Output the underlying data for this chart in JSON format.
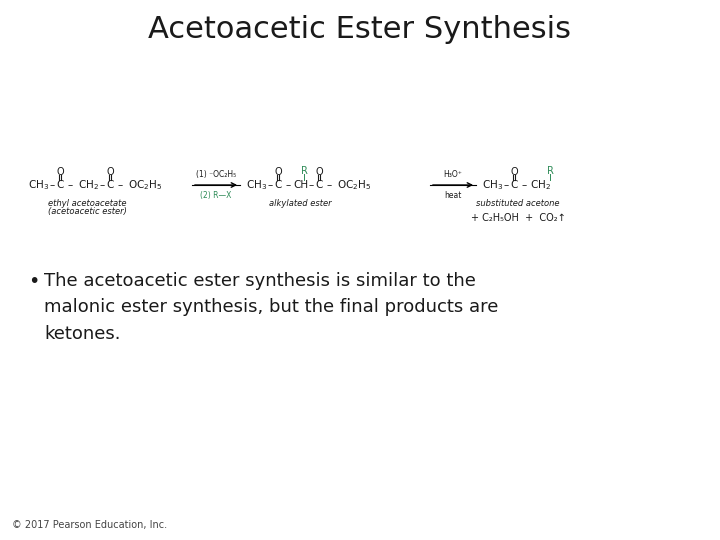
{
  "title": "Acetoacetic Ester Synthesis",
  "title_fontsize": 22,
  "background_color": "#ffffff",
  "bullet_text": "The acetoacetic ester synthesis is similar to the\nmalonic ester synthesis, but the final products are\nketones.",
  "bullet_fontsize": 13,
  "footer": "© 2017 Pearson Education, Inc.",
  "footer_fontsize": 7,
  "teal_color": "#2e8b57",
  "black_color": "#1a1a1a",
  "gray_color": "#444444",
  "chem_fontsize": 7.5,
  "label_fontsize": 6,
  "arrow1_label_top": "(1) ⁻OC₂H₅",
  "arrow1_label_bot": "(2) R—X",
  "arrow2_label_top": "H₃O⁺",
  "arrow2_label_bot": "heat",
  "structure1_label1": "ethyl acetoacetate",
  "structure1_label2": "(acetoacetic ester)",
  "structure2_label": "alkylated ester",
  "structure3_label": "substituted acetone",
  "byproducts": "+ C₂H₅OH  +  CO₂↑"
}
